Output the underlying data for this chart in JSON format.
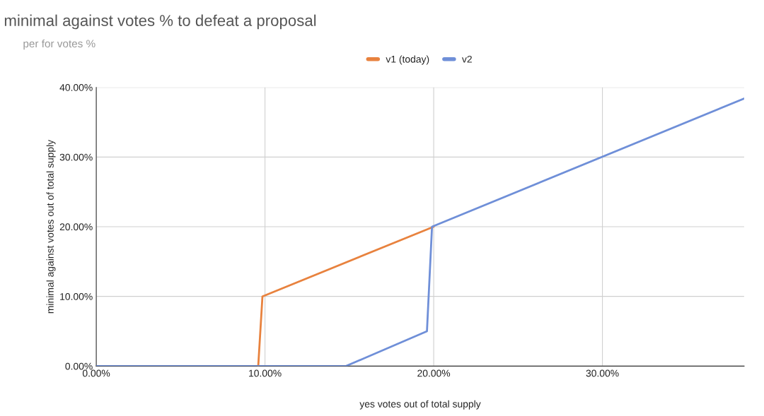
{
  "chart_data": {
    "type": "line",
    "title": "minimal against votes % to defeat a proposal",
    "subtitle": "per for votes %",
    "xlabel": "yes votes out of total supply",
    "ylabel": "minimal against votes out of total supply",
    "series": [
      {
        "name": "v1 (today)",
        "color": "#e8823e",
        "x": [
          9.6,
          9.85,
          20
        ],
        "values": [
          0,
          10,
          20
        ]
      },
      {
        "name": "v2",
        "color": "#6f8fd8",
        "x": [
          0,
          14.8,
          19.6,
          19.9,
          38.4
        ],
        "values": [
          0,
          0,
          5,
          20,
          38.4
        ]
      }
    ],
    "xlim": [
      0,
      38.4
    ],
    "ylim": [
      0,
      40
    ],
    "xticks": [
      {
        "value": 0,
        "label": "0.00%"
      },
      {
        "value": 10,
        "label": "10.00%"
      },
      {
        "value": 20,
        "label": "20.00%"
      },
      {
        "value": 30,
        "label": "30.00%"
      }
    ],
    "yticks": [
      {
        "value": 0,
        "label": "0.00%"
      },
      {
        "value": 10,
        "label": "10.00%"
      },
      {
        "value": 20,
        "label": "20.00%"
      },
      {
        "value": 30,
        "label": "30.00%"
      },
      {
        "value": 40,
        "label": "40.00%"
      }
    ],
    "grid": true,
    "legend": "top",
    "marker": "none",
    "line_style": "solid"
  }
}
